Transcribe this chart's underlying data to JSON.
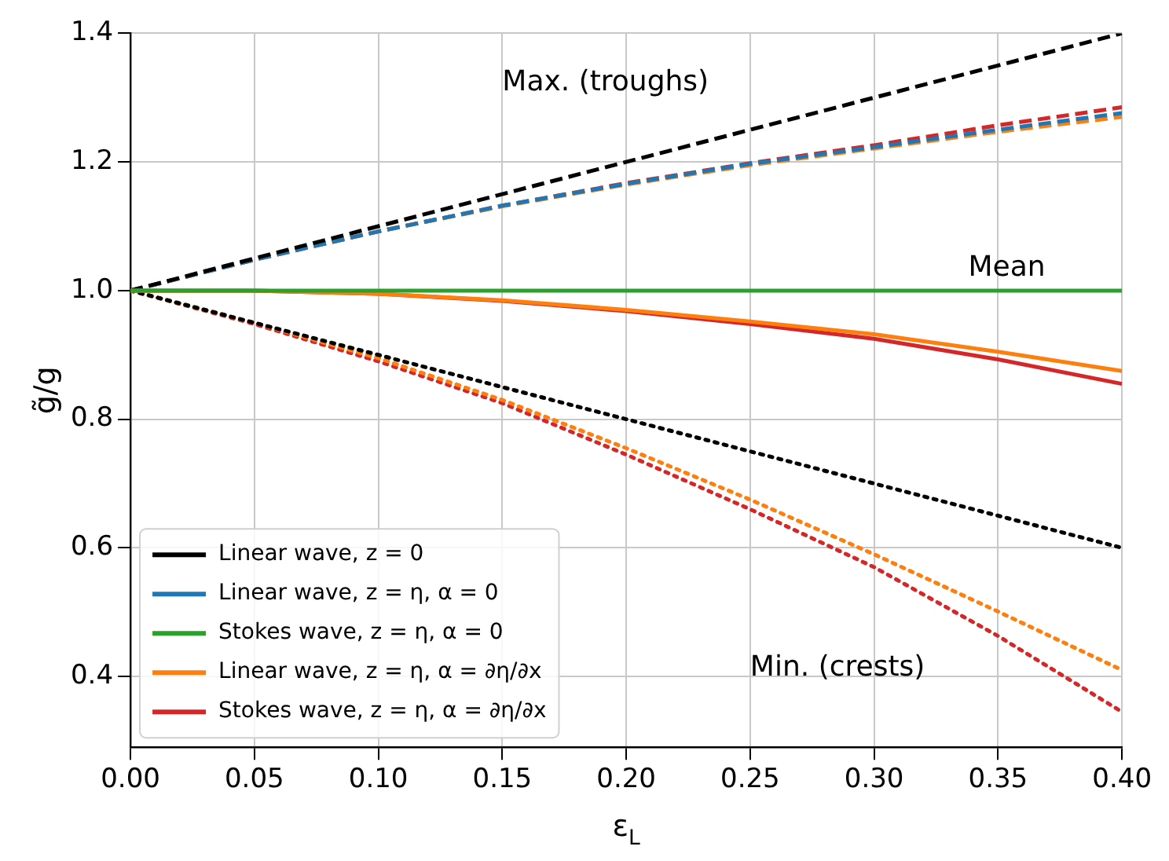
{
  "chart_data": {
    "type": "line",
    "xlabel": "ε$_{L}$",
    "ylabel": "g̃/g",
    "x": [
      0,
      0.05,
      0.1,
      0.15,
      0.2,
      0.25,
      0.3,
      0.35,
      0.4
    ],
    "xlim": [
      0,
      0.4
    ],
    "ylim": [
      0.29,
      1.4
    ],
    "xticks": [
      {
        "value": 0,
        "label": "0.00"
      },
      {
        "value": 0.05,
        "label": "0.05"
      },
      {
        "value": 0.1,
        "label": "0.10"
      },
      {
        "value": 0.15,
        "label": "0.15"
      },
      {
        "value": 0.2,
        "label": "0.20"
      },
      {
        "value": 0.25,
        "label": "0.25"
      },
      {
        "value": 0.3,
        "label": "0.30"
      },
      {
        "value": 0.35,
        "label": "0.35"
      },
      {
        "value": 0.4,
        "label": "0.40"
      }
    ],
    "yticks": [
      {
        "value": 0.4,
        "label": "0.4"
      },
      {
        "value": 0.6,
        "label": "0.6"
      },
      {
        "value": 0.8,
        "label": "0.8"
      },
      {
        "value": 1,
        "label": "1.0"
      },
      {
        "value": 1.2,
        "label": "1.2"
      },
      {
        "value": 1.4,
        "label": "1.4"
      }
    ],
    "grid": true,
    "legend": "bottom left",
    "marker": "none",
    "series": [
      {
        "name": "Linear wave, z = 0",
        "color": "#000000",
        "line_style": "solid",
        "values": [
          null,
          null,
          null,
          null,
          null,
          null,
          null,
          null,
          null
        ]
      },
      {
        "name": "Linear wave, z = η, α = 0",
        "color": "#1f77b4",
        "line_style": "solid",
        "values": [
          null,
          null,
          null,
          null,
          null,
          null,
          null,
          null,
          null
        ]
      },
      {
        "name": "Stokes wave, z = η, α = 0",
        "color": "#2ca02c",
        "line_style": "solid",
        "values": [
          1,
          1,
          1,
          1,
          1,
          1,
          1,
          1,
          1
        ]
      },
      {
        "name": "Linear wave, z = η, α = ∂η/∂x",
        "color": "#ff7f0e",
        "line_style": "solid",
        "values": [
          1,
          1,
          0.995,
          0.985,
          0.97,
          0.952,
          0.932,
          0.905,
          0.875
        ]
      },
      {
        "name": "Stokes wave, z = η, α = ∂η/∂x",
        "color": "#d62728",
        "line_style": "solid",
        "values": [
          1,
          1,
          0.995,
          0.984,
          0.968,
          0.948,
          0.925,
          0.893,
          0.855
        ]
      },
      {
        "color": "#000000",
        "line_style": "dashed",
        "values": [
          1,
          1.05,
          1.1,
          1.15,
          1.2,
          1.25,
          1.3,
          1.35,
          1.4
        ]
      },
      {
        "color": "#1f77b4",
        "line_style": "dashed",
        "values": [
          1,
          1.048,
          1.092,
          1.132,
          1.166,
          1.197,
          1.223,
          1.25,
          1.276
        ]
      },
      {
        "color": "#ff7f0e",
        "line_style": "dashed",
        "values": [
          1,
          1.048,
          1.092,
          1.131,
          1.165,
          1.195,
          1.221,
          1.247,
          1.27
        ]
      },
      {
        "color": "#d62728",
        "line_style": "dashed",
        "values": [
          1,
          1.048,
          1.092,
          1.132,
          1.167,
          1.198,
          1.226,
          1.257,
          1.285
        ]
      },
      {
        "color": "#000000",
        "line_style": "dotted",
        "values": [
          1,
          0.95,
          0.9,
          0.85,
          0.8,
          0.75,
          0.7,
          0.65,
          0.6
        ]
      },
      {
        "color": "#ff7f0e",
        "line_style": "dotted",
        "values": [
          1,
          0.95,
          0.895,
          0.83,
          0.755,
          0.675,
          0.59,
          0.501,
          0.41
        ]
      },
      {
        "color": "#d62728",
        "line_style": "dotted",
        "values": [
          1,
          0.948,
          0.89,
          0.825,
          0.745,
          0.66,
          0.57,
          0.463,
          0.345
        ]
      }
    ],
    "annotations": [
      "Max. (troughs)",
      "Mean",
      "Min. (crests)"
    ]
  }
}
